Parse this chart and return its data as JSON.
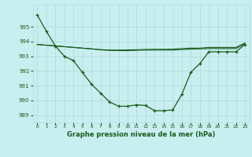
{
  "title": "Graphe pression niveau de la mer (hPa)",
  "bg_color": "#c8eef0",
  "grid_color": "#b0dede",
  "line_color": "#1a5c1a",
  "x_ticks": [
    0,
    1,
    2,
    3,
    4,
    5,
    6,
    7,
    8,
    9,
    10,
    11,
    12,
    13,
    14,
    15,
    16,
    17,
    18,
    19,
    20,
    21,
    22,
    23
  ],
  "ylim": [
    988.5,
    996.5
  ],
  "yticks": [
    989,
    990,
    991,
    992,
    993,
    994,
    995
  ],
  "line_main": [
    995.8,
    994.7,
    993.7,
    993.0,
    992.7,
    991.9,
    991.1,
    990.5,
    989.9,
    989.6,
    989.6,
    989.7,
    989.65,
    989.3,
    989.3,
    989.35,
    990.4,
    991.9,
    992.5,
    993.3,
    993.3,
    993.3,
    993.3,
    993.8
  ],
  "line_max": [
    993.8,
    993.75,
    993.7,
    993.65,
    993.6,
    993.55,
    993.5,
    993.45,
    993.42,
    993.42,
    993.43,
    993.44,
    993.46,
    993.47,
    993.47,
    993.48,
    993.52,
    993.55,
    993.55,
    993.6,
    993.6,
    993.6,
    993.6,
    993.9
  ],
  "line_min": [
    993.8,
    993.75,
    993.7,
    993.65,
    993.6,
    993.55,
    993.5,
    993.43,
    993.4,
    993.38,
    993.38,
    993.4,
    993.42,
    993.42,
    993.42,
    993.42,
    993.45,
    993.48,
    993.5,
    993.52,
    993.52,
    993.52,
    993.52,
    993.85
  ]
}
